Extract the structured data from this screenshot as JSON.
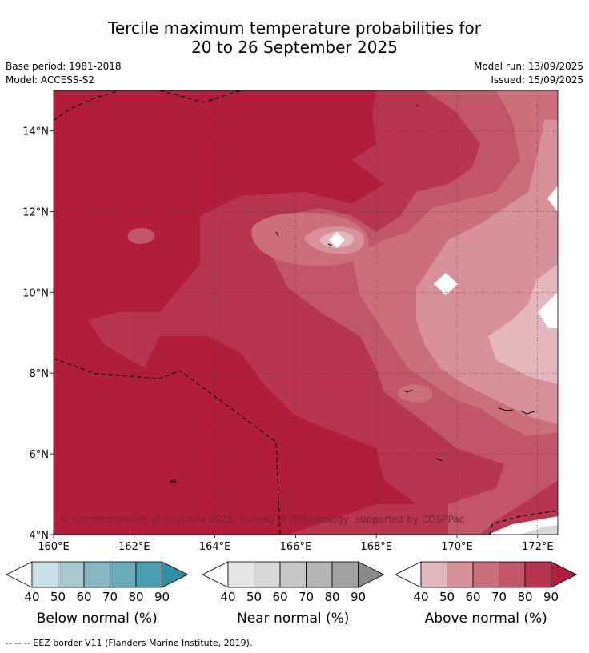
{
  "title_line1": "Tercile maximum temperature probabilities for",
  "title_line2": "20 to 26 September 2025",
  "base_period": "Base period: 1981-2018",
  "model": "Model: ACCESS-S2",
  "model_run": "Model run: 13/09/2025",
  "issued": "Issued: 15/09/2025",
  "copyright": "© Commonwealth of Australia 2025, Bureau of Meteorology, supported by COSPPac",
  "footer": "-- -- -- EEZ border V11 (Flanders Marine Institute, 2019).",
  "map": {
    "lon_range": [
      160,
      172.5
    ],
    "lat_range": [
      4,
      15
    ],
    "lon_ticks": [
      "160°E",
      "162°E",
      "164°E",
      "166°E",
      "168°E",
      "170°E",
      "172°E"
    ],
    "lat_ticks": [
      "4°N",
      "6°N",
      "8°N",
      "10°N",
      "12°N",
      "14°N"
    ],
    "dominant_category": "Above normal",
    "dominant_range": "60-90%"
  },
  "colorbars": [
    {
      "name": "Below normal (%)",
      "labels": [
        "40",
        "50",
        "60",
        "70",
        "80",
        "90"
      ],
      "colors": [
        "#ffffff",
        "#c9e2e9",
        "#a6c8cf",
        "#89b6c3",
        "#6aaabb",
        "#4a9db1",
        "#2f8fa6"
      ]
    },
    {
      "name": "Near normal (%)",
      "labels": [
        "40",
        "50",
        "60",
        "70",
        "80",
        "90"
      ],
      "colors": [
        "#ffffff",
        "#e5e5e5",
        "#d7d7d7",
        "#c6c6c6",
        "#b4b4b4",
        "#a0a0a0",
        "#8a8a8a"
      ]
    },
    {
      "name": "Above normal (%)",
      "labels": [
        "40",
        "50",
        "60",
        "70",
        "80",
        "90"
      ],
      "colors": [
        "#ffffff",
        "#e3b7bd",
        "#d8919a",
        "#cb6f7b",
        "#c05668",
        "#b83550",
        "#b21d3b"
      ]
    }
  ]
}
